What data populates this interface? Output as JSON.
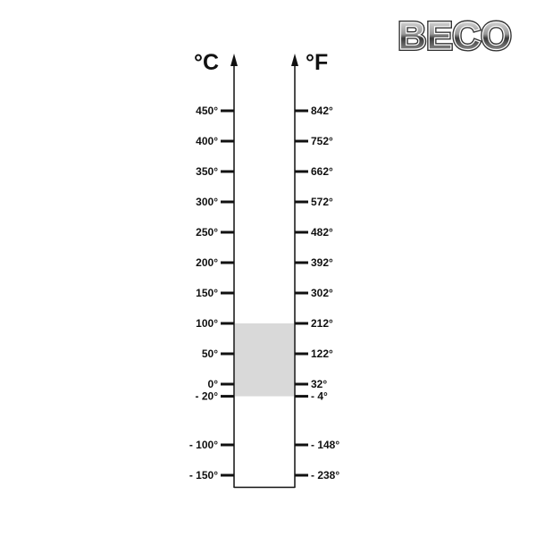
{
  "logo": {
    "text": "BECO"
  },
  "units": {
    "left": "°C",
    "right": "°F"
  },
  "highlight": {
    "from_celsius": -20,
    "to_celsius": 100,
    "color": "#d9d9d9"
  },
  "ticks": [
    {
      "c": 450,
      "c_label": "450°",
      "f_label": "842°"
    },
    {
      "c": 400,
      "c_label": "400°",
      "f_label": "752°"
    },
    {
      "c": 350,
      "c_label": "350°",
      "f_label": "662°"
    },
    {
      "c": 300,
      "c_label": "300°",
      "f_label": "572°"
    },
    {
      "c": 250,
      "c_label": "250°",
      "f_label": "482°"
    },
    {
      "c": 200,
      "c_label": "200°",
      "f_label": "392°"
    },
    {
      "c": 150,
      "c_label": "150°",
      "f_label": "302°"
    },
    {
      "c": 100,
      "c_label": "100°",
      "f_label": "212°"
    },
    {
      "c": 50,
      "c_label": "50°",
      "f_label": "122°"
    },
    {
      "c": 0,
      "c_label": "0°",
      "f_label": "32°"
    },
    {
      "c": -20,
      "c_label": "- 20°",
      "f_label": "- 4°"
    },
    {
      "c": -100,
      "c_label": "- 100°",
      "f_label": "- 148°"
    },
    {
      "c": -150,
      "c_label": "- 150°",
      "f_label": "- 238°"
    }
  ]
}
